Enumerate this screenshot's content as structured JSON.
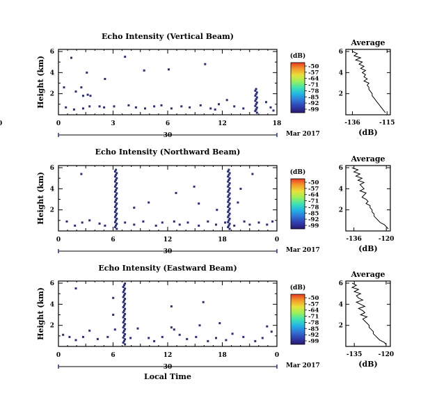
{
  "chart_data": [
    {
      "type": "heatmap",
      "title": "Echo Intensity (Vertical Beam)",
      "ylabel": "Height (km)",
      "x_ticks": [
        "0",
        "6",
        "12",
        "18",
        "0"
      ],
      "x_ticks_extra": [
        "3",
        "9",
        "15",
        "21"
      ],
      "x_ticks_labeled": [
        "0",
        "3",
        "6",
        "12",
        "18",
        "24"
      ],
      "x_tick_labels": [
        "0",
        "3",
        "6",
        "12",
        "18",
        "0"
      ],
      "y_ticks": [
        "6",
        "4",
        "2"
      ],
      "date_marker": "30",
      "date_label": "Mar 2017",
      "colorbar": {
        "unit": "(dB)",
        "ticks": [
          "-50",
          "-57",
          "-64",
          "-71",
          "-78",
          "-85",
          "-92",
          "-99"
        ]
      },
      "cells": [
        [
          1.3,
          5.4
        ],
        [
          7.2,
          5.5
        ],
        [
          5.0,
          3.4
        ],
        [
          9.3,
          4.2
        ],
        [
          3.0,
          4.0
        ],
        [
          0.5,
          2.6
        ],
        [
          1.8,
          2.2
        ],
        [
          2.4,
          2.6
        ],
        [
          2.6,
          1.8
        ],
        [
          3.1,
          1.9
        ],
        [
          3.4,
          1.8
        ],
        [
          3.3,
          0.8
        ],
        [
          0.7,
          0.7
        ],
        [
          1.6,
          0.5
        ],
        [
          2.6,
          0.6
        ],
        [
          4.4,
          0.8
        ],
        [
          4.9,
          0.7
        ],
        [
          6.0,
          0.8
        ],
        [
          7.6,
          0.9
        ],
        [
          8.4,
          0.7
        ],
        [
          9.4,
          0.6
        ],
        [
          10.4,
          0.8
        ],
        [
          11.2,
          0.9
        ],
        [
          12.3,
          0.6
        ],
        [
          13.4,
          0.8
        ],
        [
          14.3,
          0.7
        ],
        [
          15.5,
          0.9
        ],
        [
          16.6,
          0.6
        ],
        [
          17.1,
          0.5
        ],
        [
          17.5,
          1.0
        ],
        [
          18.4,
          1.4
        ],
        [
          19.2,
          0.8
        ],
        [
          20.2,
          0.6
        ],
        [
          21.6,
          0.5
        ],
        [
          22.7,
          1.2
        ],
        [
          23.2,
          0.7
        ],
        [
          23.5,
          0.4
        ],
        [
          12.0,
          4.3
        ],
        [
          16.0,
          4.8
        ]
      ],
      "cells_column": {
        "x": 21.6,
        "y_from": 0.2,
        "y_to": 2.5
      },
      "profile": {
        "title": "Average",
        "xlabel": "(dB)",
        "x_ticks": [
          "-136",
          "-115"
        ],
        "y_ticks": [
          "6",
          "4",
          "2"
        ],
        "heights": [
          6.0,
          5.8,
          5.6,
          5.4,
          5.2,
          5.0,
          4.8,
          4.6,
          4.4,
          4.2,
          4.0,
          3.8,
          3.6,
          3.4,
          3.2,
          3.0,
          2.8,
          2.6,
          2.4,
          2.2,
          2.0,
          1.8,
          1.6,
          1.4,
          1.2,
          1.0,
          0.8,
          0.6,
          0.4,
          0.2
        ],
        "values": [
          -136,
          -133,
          -135,
          -131,
          -134,
          -130,
          -132,
          -129,
          -131,
          -128,
          -130,
          -128,
          -129,
          -127,
          -129,
          -126,
          -127,
          -126,
          -126,
          -125,
          -124,
          -124,
          -123,
          -122,
          -121,
          -120,
          -119,
          -118,
          -117,
          -116
        ]
      }
    },
    {
      "type": "heatmap",
      "title": "Echo Intensity (Northward Beam)",
      "ylabel": "Height (km)",
      "x_tick_labels": [
        "0",
        "6",
        "12",
        "18",
        "0"
      ],
      "y_ticks": [
        "6",
        "4",
        "2"
      ],
      "date_marker": "30",
      "date_label": "Mar 2017",
      "colorbar": {
        "unit": "(dB)",
        "ticks": [
          "-50",
          "-57",
          "-64",
          "-71",
          "-78",
          "-85",
          "-92",
          "-99"
        ]
      },
      "cells": [
        [
          2.4,
          5.4
        ],
        [
          12.8,
          3.6
        ],
        [
          14.8,
          4.2
        ],
        [
          15.3,
          2.6
        ],
        [
          17.3,
          2.0
        ],
        [
          19.9,
          4.0
        ],
        [
          21.2,
          5.4
        ],
        [
          0.8,
          0.9
        ],
        [
          1.7,
          0.5
        ],
        [
          2.5,
          0.8
        ],
        [
          3.3,
          1.0
        ],
        [
          4.4,
          0.7
        ],
        [
          5.0,
          0.5
        ],
        [
          7.2,
          0.8
        ],
        [
          8.2,
          0.6
        ],
        [
          9.2,
          0.9
        ],
        [
          10.6,
          0.5
        ],
        [
          11.3,
          0.8
        ],
        [
          12.6,
          0.9
        ],
        [
          13.2,
          0.6
        ],
        [
          14.1,
          0.8
        ],
        [
          15.3,
          0.5
        ],
        [
          16.3,
          0.9
        ],
        [
          17.2,
          0.6
        ],
        [
          18.2,
          0.8
        ],
        [
          19.2,
          0.5
        ],
        [
          20.3,
          0.9
        ],
        [
          20.9,
          0.6
        ],
        [
          21.9,
          0.8
        ],
        [
          22.8,
          0.6
        ],
        [
          23.4,
          0.9
        ],
        [
          9.8,
          2.7
        ],
        [
          8.2,
          2.2
        ],
        [
          19.6,
          2.7
        ]
      ],
      "cells_columns": [
        {
          "x": 6.2,
          "y_from": 0.2,
          "y_to": 5.9
        },
        {
          "x": 18.6,
          "y_from": 0.2,
          "y_to": 5.9
        }
      ],
      "profile": {
        "title": "Average",
        "xlabel": "(dB)",
        "x_ticks": [
          "-136",
          "-120"
        ],
        "y_ticks": [
          "6",
          "4",
          "2"
        ],
        "heights": [
          6.0,
          5.8,
          5.6,
          5.4,
          5.2,
          5.0,
          4.8,
          4.6,
          4.4,
          4.2,
          4.0,
          3.8,
          3.6,
          3.4,
          3.2,
          3.0,
          2.8,
          2.6,
          2.4,
          2.2,
          2.0,
          1.8,
          1.6,
          1.4,
          1.2,
          1.0,
          0.8,
          0.6,
          0.4,
          0.2
        ],
        "values": [
          -137,
          -134,
          -136,
          -133,
          -135,
          -132,
          -134,
          -131,
          -133,
          -132,
          -131,
          -133,
          -130,
          -131,
          -132,
          -130,
          -129,
          -130,
          -128,
          -128,
          -127,
          -127,
          -126,
          -126,
          -125,
          -124,
          -123,
          -121,
          -120,
          -119
        ]
      }
    },
    {
      "type": "heatmap",
      "title": "Echo Intensity (Eastward Beam)",
      "ylabel": "Height (km)",
      "x_tick_labels": [
        "0",
        "6",
        "12",
        "18",
        "0"
      ],
      "y_ticks": [
        "6",
        "4",
        "2"
      ],
      "date_marker": "30",
      "date_label": "Mar 2017",
      "xlabel": "Local Time",
      "colorbar": {
        "unit": "(dB)",
        "ticks": [
          "-50",
          "-57",
          "-64",
          "-71",
          "-78",
          "-85",
          "-92",
          "-99"
        ]
      },
      "cells": [
        [
          1.8,
          5.5
        ],
        [
          5.9,
          4.6
        ],
        [
          5.9,
          3.0
        ],
        [
          12.3,
          1.8
        ],
        [
          12.3,
          3.8
        ],
        [
          15.8,
          4.2
        ],
        [
          15.4,
          2.0
        ],
        [
          0.4,
          1.1
        ],
        [
          1.1,
          0.9
        ],
        [
          1.8,
          0.6
        ],
        [
          2.6,
          0.9
        ],
        [
          3.3,
          1.5
        ],
        [
          4.2,
          0.7
        ],
        [
          5.3,
          0.9
        ],
        [
          6.1,
          1.6
        ],
        [
          7.8,
          0.8
        ],
        [
          8.6,
          1.7
        ],
        [
          9.8,
          0.8
        ],
        [
          10.4,
          0.5
        ],
        [
          11.3,
          0.9
        ],
        [
          12.6,
          1.6
        ],
        [
          13.2,
          1.1
        ],
        [
          14.0,
          0.7
        ],
        [
          15.0,
          0.9
        ],
        [
          16.3,
          0.5
        ],
        [
          17.2,
          0.8
        ],
        [
          18.3,
          0.6
        ],
        [
          19.0,
          1.2
        ],
        [
          20.2,
          0.9
        ],
        [
          21.5,
          0.5
        ],
        [
          22.3,
          0.8
        ],
        [
          23.3,
          1.4
        ],
        [
          22.8,
          1.9
        ],
        [
          17.6,
          2.2
        ]
      ],
      "cells_columns": [
        {
          "x": 7.1,
          "y_from": 0.2,
          "y_to": 6.0
        }
      ],
      "profile": {
        "title": "Average",
        "xlabel": "(dB)",
        "x_ticks": [
          "-135",
          "-120"
        ],
        "y_ticks": [
          "6",
          "4",
          "2"
        ],
        "heights": [
          6.0,
          5.8,
          5.6,
          5.4,
          5.2,
          5.0,
          4.8,
          4.6,
          4.4,
          4.2,
          4.0,
          3.8,
          3.6,
          3.4,
          3.2,
          3.0,
          2.8,
          2.6,
          2.4,
          2.2,
          2.0,
          1.8,
          1.6,
          1.4,
          1.2,
          1.0,
          0.8,
          0.6,
          0.4,
          0.2
        ],
        "values": [
          -136,
          -134,
          -136,
          -133,
          -135,
          -132,
          -134,
          -133,
          -131,
          -134,
          -132,
          -130,
          -133,
          -131,
          -130,
          -132,
          -129,
          -131,
          -130,
          -129,
          -128,
          -128,
          -127,
          -126,
          -126,
          -125,
          -124,
          -123,
          -121,
          -120
        ]
      }
    }
  ],
  "colors": {
    "echo_cell": "#2b2f7a",
    "colorbar_stops": [
      "#2a1a6e",
      "#2f3fb0",
      "#2f76d8",
      "#22b5e5",
      "#3fe3b2",
      "#9af05a",
      "#e8e23a",
      "#f59b2a",
      "#e63a22"
    ]
  }
}
